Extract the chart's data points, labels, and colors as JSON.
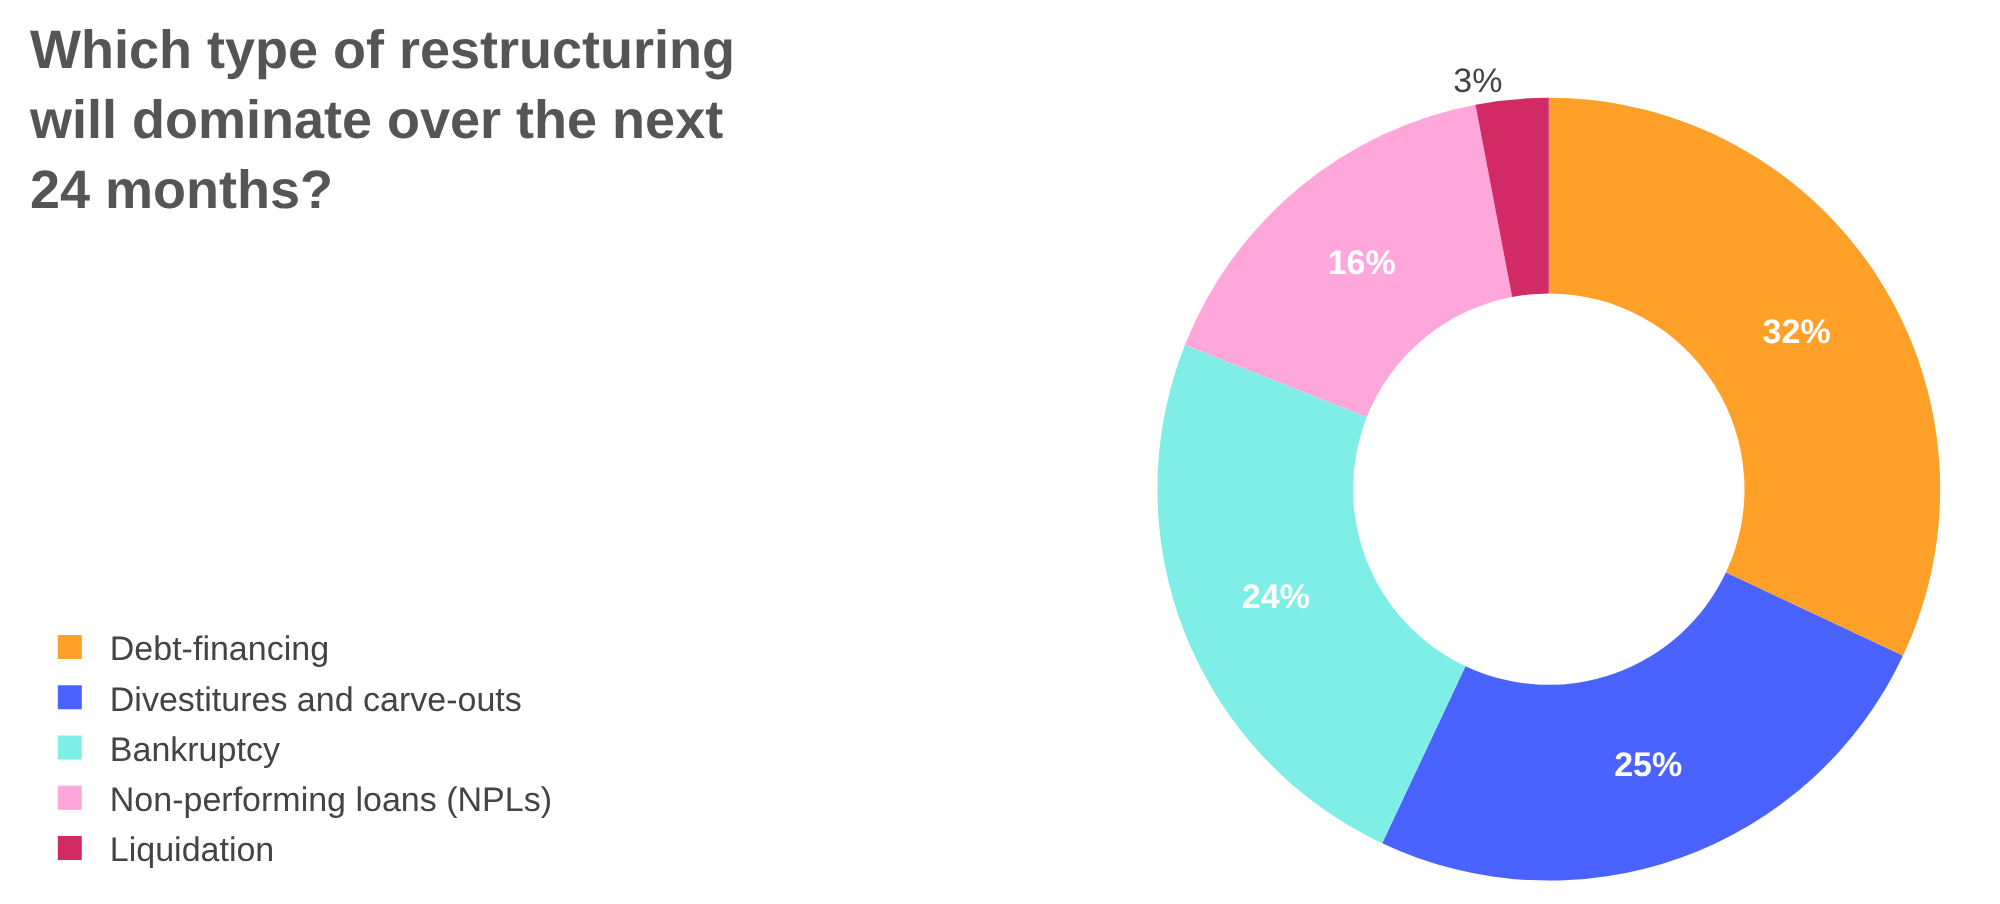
{
  "chart_data": {
    "type": "donut",
    "title": "Which type of restructuring will dominate over the next 24 months?",
    "categories": [
      "Debt-financing",
      "Divestitures and carve-outs",
      "Bankruptcy",
      "Non-performing loans (NPLs)",
      "Liquidation"
    ],
    "values": [
      32,
      25,
      24,
      16,
      3
    ],
    "value_labels": [
      "32%",
      "25%",
      "24%",
      "16%",
      "3%"
    ],
    "colors": [
      "#ffa028",
      "#4a63ff",
      "#7eeee6",
      "#ffa6da",
      "#d12a64"
    ],
    "legend": "bottom left"
  }
}
